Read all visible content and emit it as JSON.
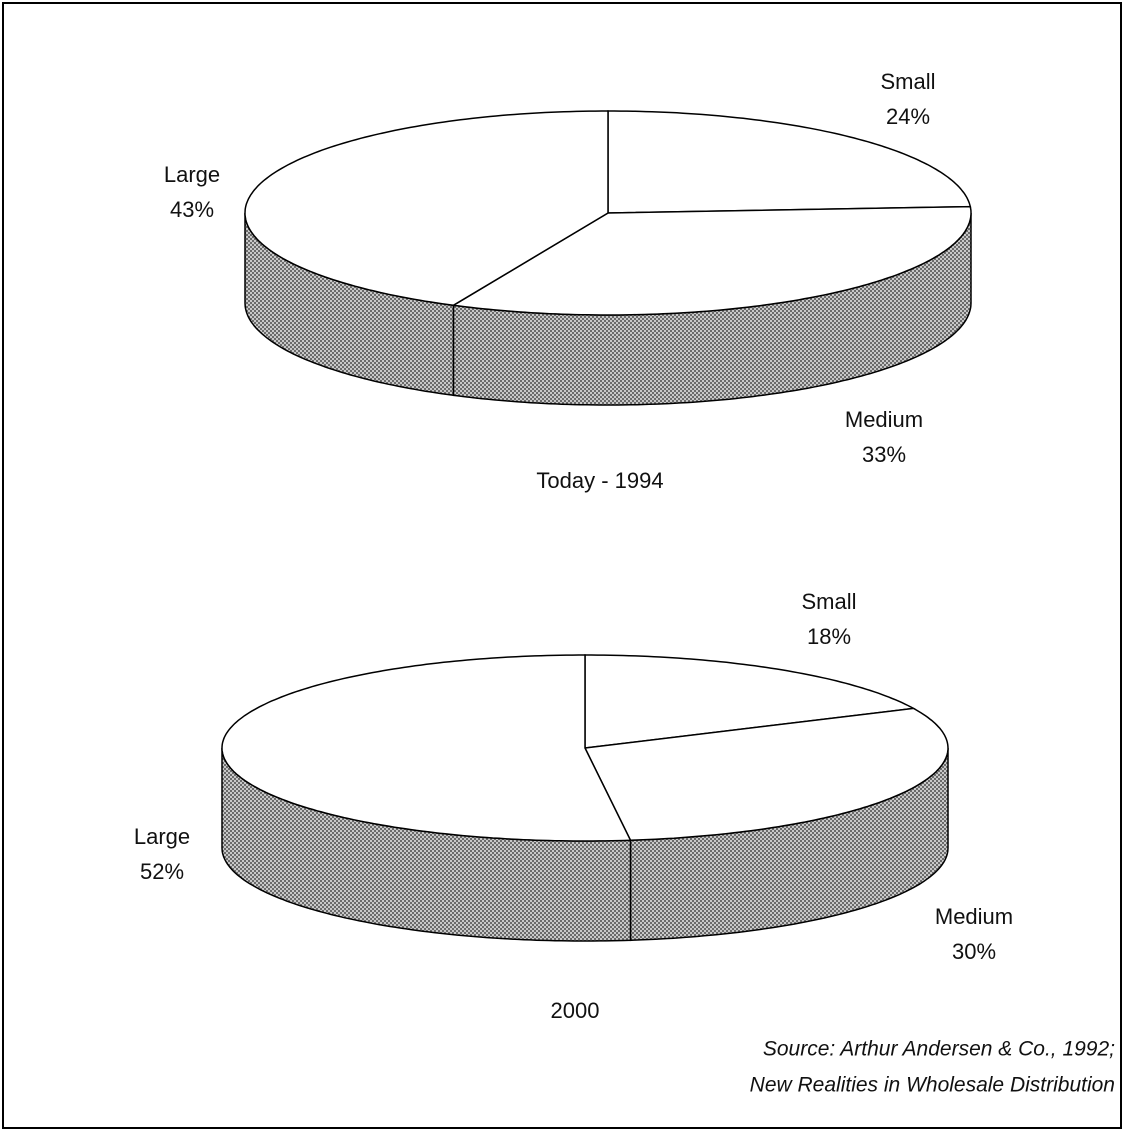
{
  "chart_data": [
    {
      "type": "pie",
      "title": "Today - 1994",
      "categories": [
        "Small",
        "Medium",
        "Large"
      ],
      "values": [
        24,
        33,
        43
      ],
      "value_labels": [
        "24%",
        "33%",
        "43%"
      ]
    },
    {
      "type": "pie",
      "title": "2000",
      "categories": [
        "Small",
        "Medium",
        "Large"
      ],
      "values": [
        18,
        30,
        52
      ],
      "value_labels": [
        "18%",
        "30%",
        "52%"
      ]
    }
  ],
  "source": [
    "Source:  Arthur Andersen & Co., 1992;",
    "New Realities in Wholesale Distribution"
  ]
}
